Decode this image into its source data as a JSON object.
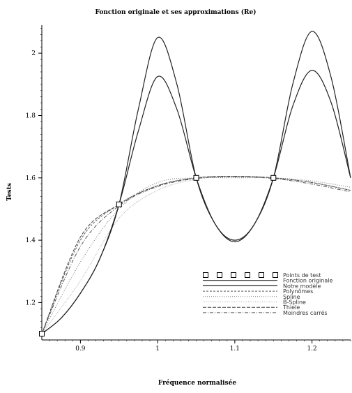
{
  "chart_data": {
    "type": "line",
    "title": "Fonction originale et ses approximations (Re)",
    "xlabel": "Fréquence normalisée",
    "ylabel": "Tests",
    "xlim": [
      0.85,
      1.25
    ],
    "ylim": [
      1.08,
      2.09
    ],
    "x_ticks": [
      0.9,
      1,
      1.1,
      1.2
    ],
    "x_tick_labels": [
      "0.9",
      "1",
      "1.1",
      "1.2"
    ],
    "y_ticks": [
      1.2,
      1.4,
      1.6,
      1.8,
      2
    ],
    "y_tick_labels": [
      "1.2",
      "1.4",
      "1.6",
      "1.8",
      "2"
    ],
    "legend_position": "lower-right",
    "grid": false,
    "series": [
      {
        "name": "Points de test",
        "style": "markers",
        "x": [
          0.85,
          0.95,
          1.05,
          1.15
        ],
        "y": [
          1.1,
          1.515,
          1.6,
          1.6
        ]
      },
      {
        "name": "Fonction originale",
        "style": "solid",
        "x": [
          0.85,
          0.875,
          0.9,
          0.925,
          0.95,
          0.975,
          1.0,
          1.025,
          1.05,
          1.075,
          1.1,
          1.125,
          1.15,
          1.175,
          1.2,
          1.225,
          1.25
        ],
        "y": [
          1.1,
          1.15,
          1.23,
          1.34,
          1.515,
          1.82,
          2.05,
          1.9,
          1.6,
          1.45,
          1.395,
          1.45,
          1.6,
          1.9,
          2.07,
          1.92,
          1.6
        ]
      },
      {
        "name": "Notre modèle",
        "style": "solid",
        "x": [
          0.85,
          0.875,
          0.9,
          0.925,
          0.95,
          0.975,
          1.0,
          1.025,
          1.05,
          1.075,
          1.1,
          1.125,
          1.15,
          1.175,
          1.2,
          1.225,
          1.25
        ],
        "y": [
          1.1,
          1.15,
          1.23,
          1.34,
          1.515,
          1.75,
          1.925,
          1.82,
          1.6,
          1.45,
          1.4,
          1.45,
          1.6,
          1.83,
          1.945,
          1.84,
          1.6
        ]
      },
      {
        "name": "Polynômes",
        "style": "dashed",
        "x": [
          0.85,
          0.9,
          0.95,
          1.0,
          1.05,
          1.1,
          1.15,
          1.2,
          1.25
        ],
        "y": [
          1.1,
          1.4,
          1.515,
          1.575,
          1.6,
          1.605,
          1.6,
          1.585,
          1.56
        ]
      },
      {
        "name": "Spline",
        "style": "dotted",
        "x": [
          0.85,
          0.9,
          0.95,
          1.0,
          1.05,
          1.1,
          1.15,
          1.2,
          1.25
        ],
        "y": [
          1.1,
          1.33,
          1.5,
          1.585,
          1.6,
          1.6,
          1.6,
          1.59,
          1.57
        ]
      },
      {
        "name": "B-Spline",
        "style": "dotted-light",
        "x": [
          0.85,
          0.9,
          0.95,
          1.0,
          1.05,
          1.1,
          1.15,
          1.2,
          1.25
        ],
        "y": [
          1.1,
          1.27,
          1.47,
          1.56,
          1.595,
          1.605,
          1.6,
          1.585,
          1.56
        ]
      },
      {
        "name": "Thiele",
        "style": "dash-long",
        "x": [
          0.85,
          0.9,
          0.95,
          1.0,
          1.05,
          1.1,
          1.15,
          1.2,
          1.25
        ],
        "y": [
          1.1,
          1.41,
          1.515,
          1.575,
          1.6,
          1.605,
          1.6,
          1.585,
          1.56
        ]
      },
      {
        "name": "Moindres carrés",
        "style": "dash-dot",
        "x": [
          0.85,
          0.9,
          0.95,
          1.0,
          1.05,
          1.1,
          1.15,
          1.2,
          1.25
        ],
        "y": [
          1.1,
          1.38,
          1.51,
          1.572,
          1.598,
          1.603,
          1.598,
          1.58,
          1.555
        ]
      }
    ]
  }
}
